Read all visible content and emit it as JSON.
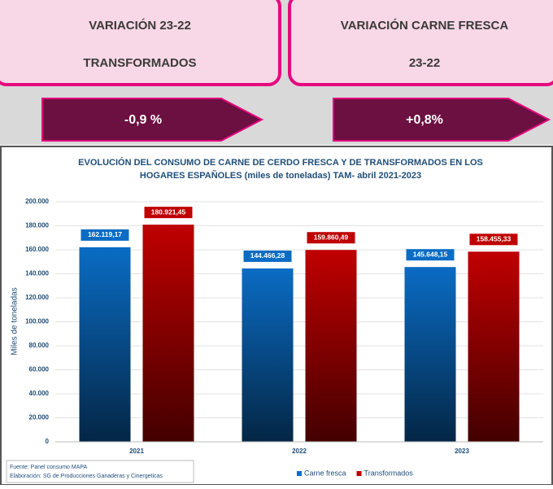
{
  "cards": [
    {
      "line1": "VARIACIÓN 23-22",
      "line2": "TRANSFORMADOS",
      "change": "-0,9 %"
    },
    {
      "line1": "VARIACIÓN CARNE FRESCA",
      "line2": "23-22",
      "change": "+0,8%"
    }
  ],
  "source": [
    "Fuente: Panel consumo MAPA",
    "Elaboración: SG de Producciones Ganaderas y Cinergeticas"
  ],
  "chart_data": {
    "type": "bar",
    "title": [
      "EVOLUCIÓN DEL CONSUMO DE CARNE DE CERDO FRESCA Y DE TRANSFORMADOS EN LOS",
      "HOGARES ESPAÑOLES (miles de toneladas) TAM- abril 2021-2023"
    ],
    "y_label": "Miles de toneladas",
    "categories": [
      "2021",
      "2022",
      "2023"
    ],
    "series": [
      {
        "name": "Carne fresca",
        "color": "#0a6cc4",
        "values": [
          162119.17,
          144466.28,
          145648.15
        ],
        "value_labels": [
          "162.119,17",
          "144.466,28",
          "145.648,15"
        ]
      },
      {
        "name": "Transformados",
        "color": "#c00000",
        "values": [
          180921.45,
          159860.49,
          158455.33
        ],
        "value_labels": [
          "180.921,45",
          "159.860,49",
          "158.455,33"
        ]
      }
    ],
    "ylim": [
      0,
      200000
    ],
    "yticks": [
      0,
      {
        "value": 20000,
        "label": "20.000"
      },
      {
        "value": 40000,
        "label": "40.000"
      },
      {
        "value": 60000,
        "label": "60.000"
      },
      {
        "value": 80000,
        "label": "80.000"
      },
      {
        "value": 100000,
        "label": "100.000"
      },
      {
        "value": 120000,
        "label": "120.000"
      },
      {
        "value": 140000,
        "label": "140.000"
      },
      {
        "value": 160000,
        "label": "160.000"
      },
      {
        "value": 180000,
        "label": "180.000"
      },
      {
        "value": 200000,
        "label": "200.000"
      }
    ],
    "grid": true,
    "legend": "bottom"
  }
}
